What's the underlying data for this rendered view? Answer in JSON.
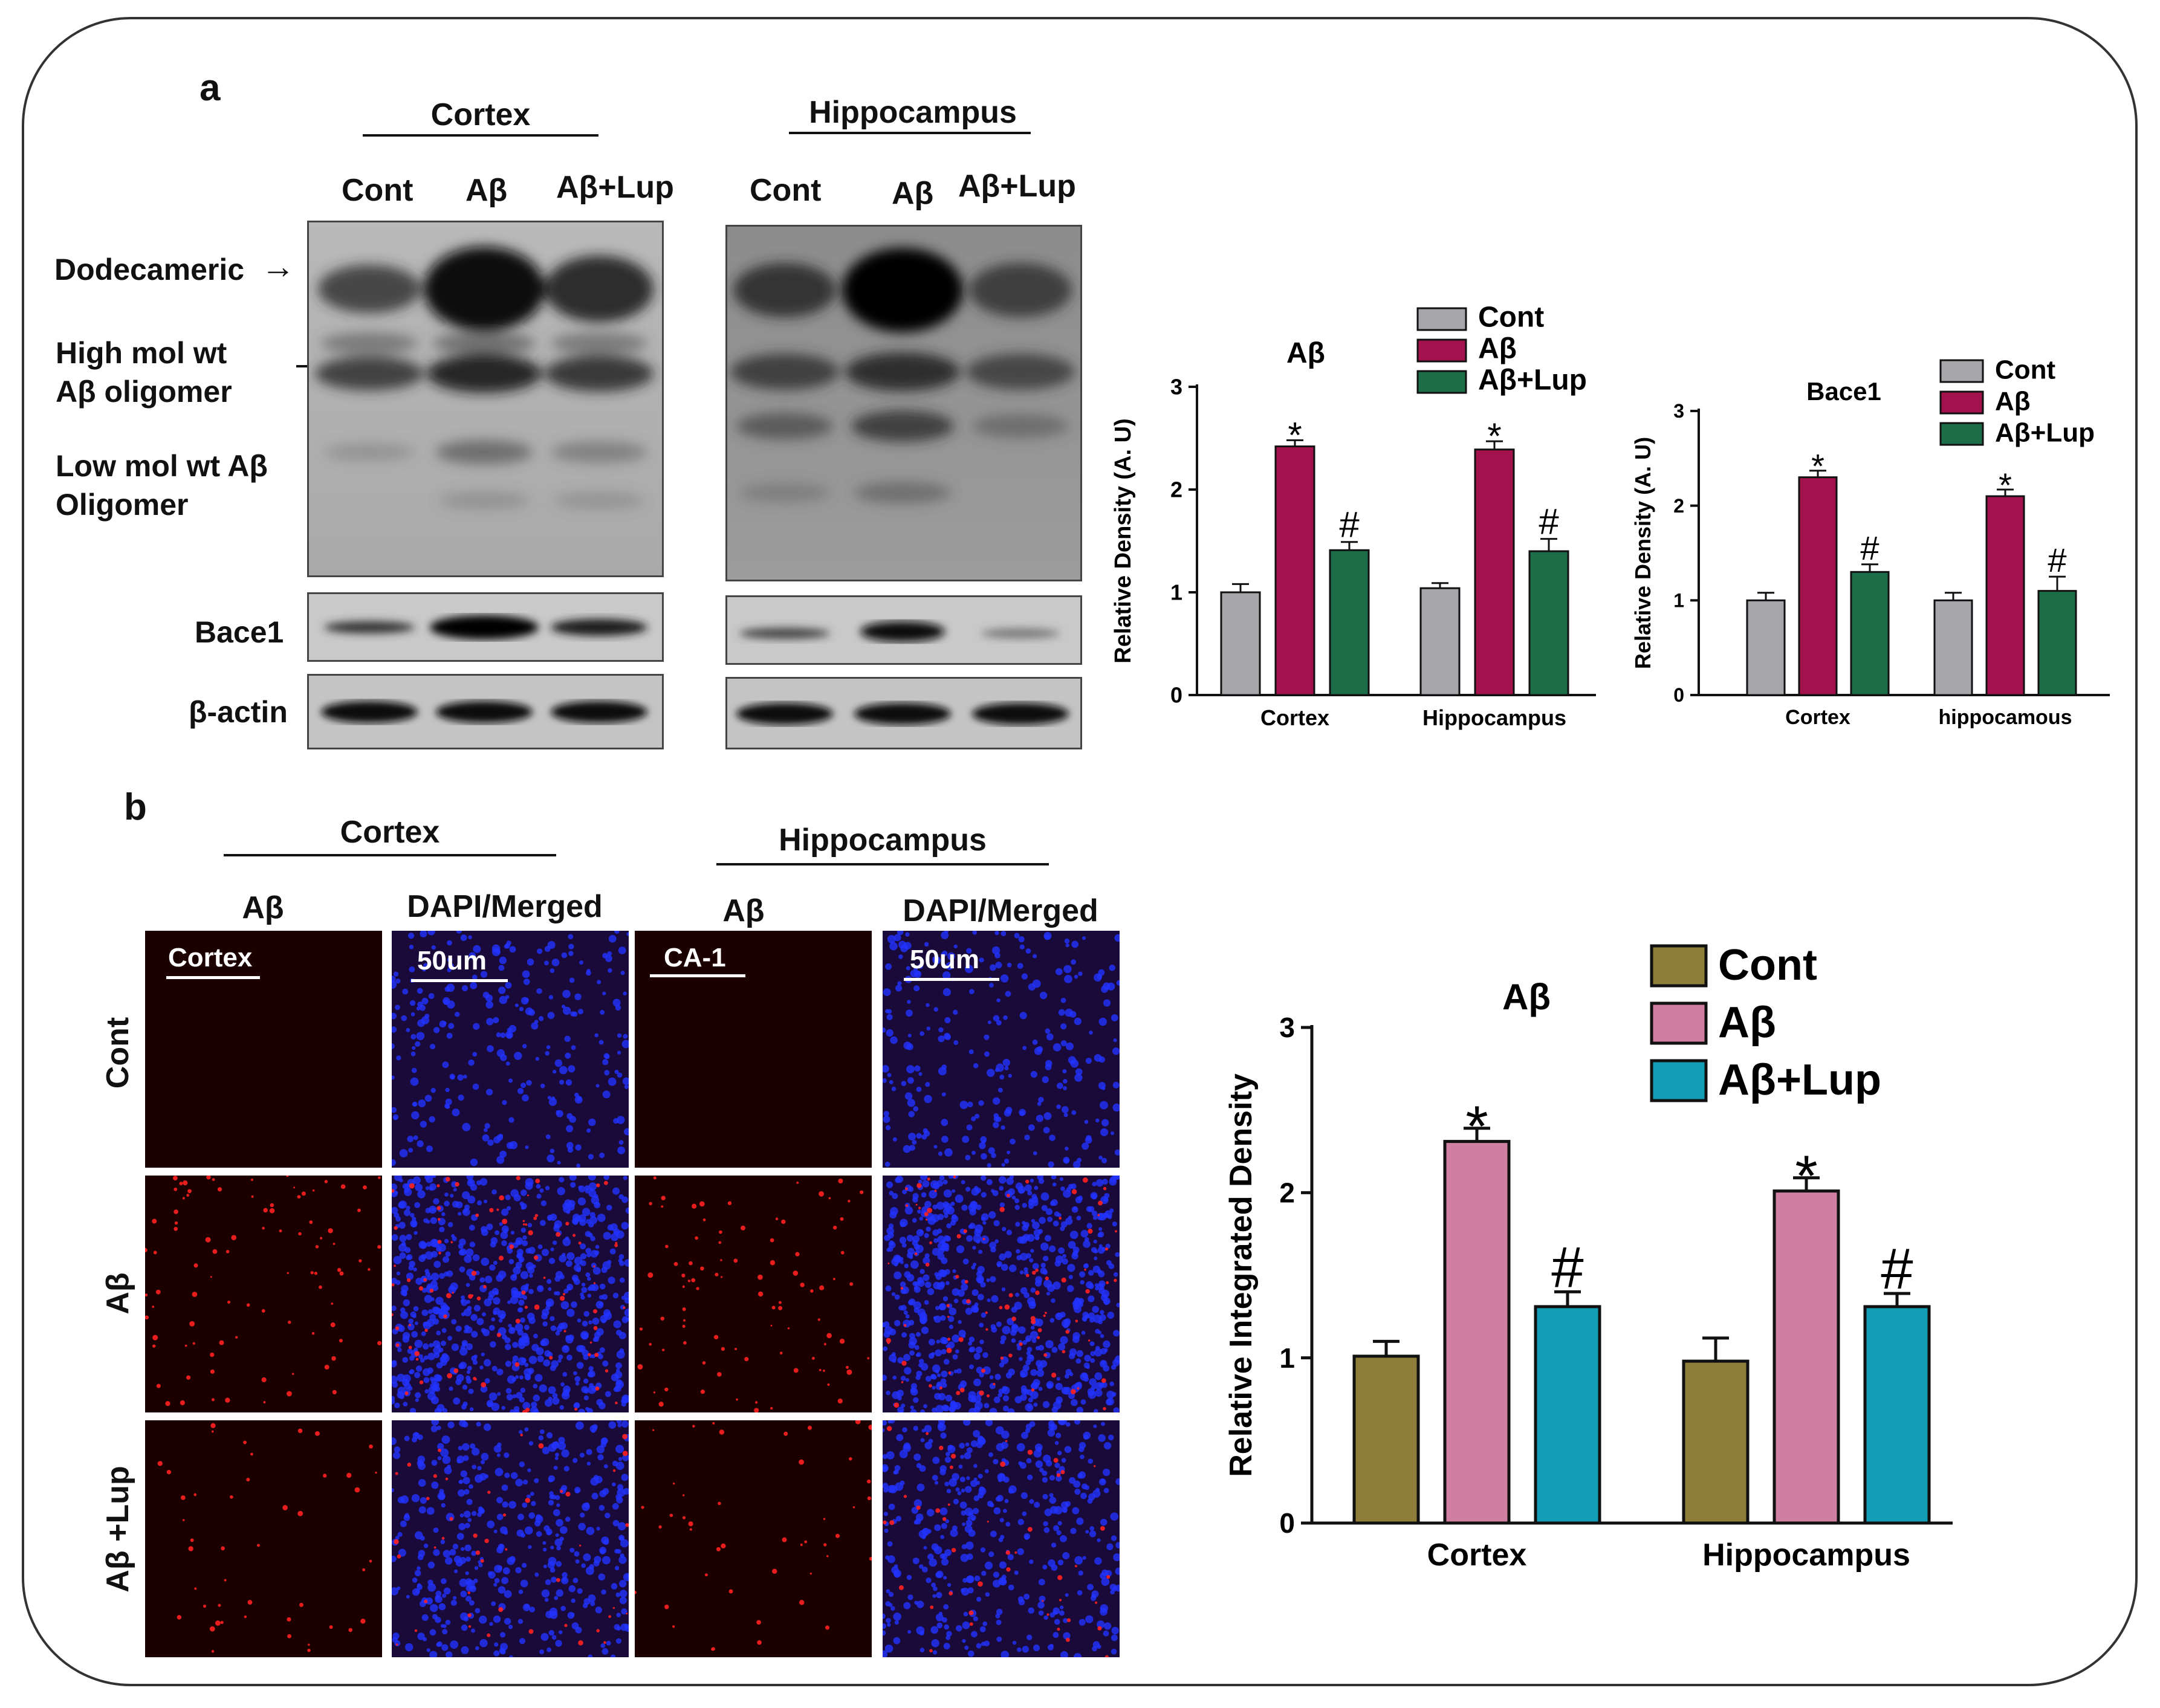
{
  "panel_a": {
    "letter": "a",
    "cortex_header": "Cortex",
    "hippocampus_header": "Hippocampus",
    "lanes": [
      "Cont",
      "Aβ",
      "Aβ+Lup"
    ],
    "band_labels": {
      "dodecameric": "Dodecameric",
      "high_1": "High mol wt",
      "high_2": "Aβ oligomer",
      "low_1": "Low mol wt Aβ",
      "low_2": "Oligomer",
      "bace1": "Bace1",
      "actin": "β-actin"
    },
    "dodecameric_arrow": "→"
  },
  "panel_b": {
    "letter": "b",
    "cortex_header": "Cortex",
    "hippocampus_header": "Hippocampus",
    "col_labels": [
      "Aβ",
      "DAPI/Merged",
      "Aβ",
      "DAPI/Merged"
    ],
    "row_labels": [
      "Cont",
      "Aβ",
      "Aβ +Lup"
    ],
    "scale_labels": [
      "Cortex",
      "50um",
      "CA-1",
      "50um"
    ]
  },
  "chart_data": [
    {
      "type": "bar",
      "title": "Aβ",
      "ylabel": "Relative Density (A. U)",
      "categories": [
        "Cortex",
        "Hippocampus"
      ],
      "yticks": [
        "0",
        "1",
        "2",
        "3"
      ],
      "ylim": [
        0,
        3
      ],
      "series": [
        {
          "name": "Cont",
          "values": [
            1.0,
            1.04
          ],
          "errors": [
            0.08,
            0.05
          ],
          "marks": [
            "",
            ""
          ]
        },
        {
          "name": "Aβ",
          "values": [
            2.42,
            2.39
          ],
          "errors": [
            0.06,
            0.08
          ],
          "marks": [
            "*",
            "*"
          ]
        },
        {
          "name": "Aβ+Lup",
          "values": [
            1.41,
            1.4
          ],
          "errors": [
            0.08,
            0.12
          ],
          "marks": [
            "#",
            "#"
          ]
        }
      ],
      "colors": [
        "#a6a6ab",
        "#a4124e",
        "#1b6e48"
      ],
      "legend": "top-right"
    },
    {
      "type": "bar",
      "title": "Bace1",
      "ylabel": "Relative Density (A. U)",
      "categories": [
        "Cortex",
        "hippocamous"
      ],
      "yticks": [
        "0",
        "1",
        "2",
        "3"
      ],
      "ylim": [
        0,
        3
      ],
      "series": [
        {
          "name": "Cont",
          "values": [
            1.0,
            1.0
          ],
          "errors": [
            0.08,
            0.08
          ],
          "marks": [
            "",
            ""
          ]
        },
        {
          "name": "Aβ",
          "values": [
            2.3,
            2.1
          ],
          "errors": [
            0.07,
            0.07
          ],
          "marks": [
            "*",
            "*"
          ]
        },
        {
          "name": "Aβ+Lup",
          "values": [
            1.3,
            1.1
          ],
          "errors": [
            0.08,
            0.15
          ],
          "marks": [
            "#",
            "#"
          ]
        }
      ],
      "colors": [
        "#a6a6ab",
        "#a4124e",
        "#1b6e48"
      ],
      "legend": "top-right"
    },
    {
      "type": "bar",
      "title": "Aβ",
      "ylabel": "Relative Integrated Density",
      "categories": [
        "Cortex",
        "Hippocampus"
      ],
      "yticks": [
        "0",
        "1",
        "2",
        "3"
      ],
      "ylim": [
        0,
        3
      ],
      "series": [
        {
          "name": "Cont",
          "values": [
            1.01,
            0.98
          ],
          "errors": [
            0.09,
            0.14
          ],
          "marks": [
            "",
            ""
          ]
        },
        {
          "name": "Aβ",
          "values": [
            2.31,
            2.01
          ],
          "errors": [
            0.08,
            0.08
          ],
          "marks": [
            "*",
            "*"
          ]
        },
        {
          "name": "Aβ+Lup",
          "values": [
            1.31,
            1.31
          ],
          "errors": [
            0.09,
            0.08
          ],
          "marks": [
            "#",
            "#"
          ]
        }
      ],
      "colors": [
        "#8f7d3a",
        "#cf7fa2",
        "#139eb5"
      ],
      "legend": "top"
    }
  ]
}
